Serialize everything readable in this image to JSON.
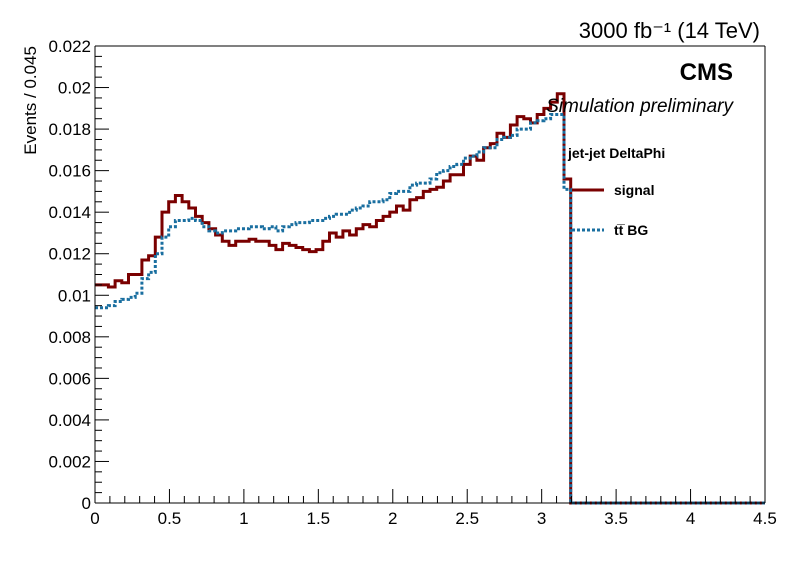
{
  "chart_data": {
    "type": "line",
    "header_text": "3000 fb⁻¹ (14 TeV)",
    "cms_label": "CMS",
    "sim_label": "Simulation preliminary",
    "ylabel": "Events / 0.045",
    "xlabel": "",
    "xlim": [
      0,
      4.5
    ],
    "ylim": [
      0,
      0.022
    ],
    "x_ticks": [
      "0",
      "0.5",
      "1",
      "1.5",
      "2",
      "2.5",
      "3",
      "3.5",
      "4",
      "4.5"
    ],
    "y_ticks": [
      "0",
      "0.002",
      "0.004",
      "0.006",
      "0.008",
      "0.01",
      "0.012",
      "0.014",
      "0.016",
      "0.018",
      "0.02",
      "0.022"
    ],
    "legend": {
      "title": "jet-jet DeltaPhi",
      "placement": "right-middle",
      "entries": [
        {
          "label": "signal",
          "color": "#7a0000",
          "style": "solid"
        },
        {
          "label": "tt̅ BG",
          "color": "#1a6fa0",
          "style": "dotted"
        }
      ]
    },
    "bin_width": 0.045,
    "x_start": 0,
    "series": [
      {
        "name": "signal",
        "color": "#7a0000",
        "values": [
          0.0105,
          0.0105,
          0.0104,
          0.0107,
          0.0106,
          0.011,
          0.011,
          0.0117,
          0.0119,
          0.0128,
          0.014,
          0.0145,
          0.0148,
          0.0145,
          0.0142,
          0.0138,
          0.0135,
          0.0132,
          0.0129,
          0.0126,
          0.0124,
          0.0126,
          0.0126,
          0.0127,
          0.0126,
          0.0126,
          0.0124,
          0.0122,
          0.0125,
          0.0124,
          0.0123,
          0.0122,
          0.0121,
          0.0122,
          0.0126,
          0.013,
          0.0128,
          0.0131,
          0.0129,
          0.0132,
          0.0134,
          0.0133,
          0.0136,
          0.0138,
          0.014,
          0.0143,
          0.0141,
          0.0146,
          0.0147,
          0.015,
          0.0151,
          0.0152,
          0.0155,
          0.0158,
          0.0158,
          0.0163,
          0.0167,
          0.0165,
          0.0171,
          0.0173,
          0.0178,
          0.0176,
          0.0182,
          0.0186,
          0.0185,
          0.0183,
          0.0187,
          0.019,
          0.0193,
          0.0197,
          0.0156,
          0.0,
          0.0,
          0.0,
          0.0,
          0.0,
          0.0,
          0.0,
          0.0,
          0.0,
          0.0,
          0.0,
          0.0,
          0.0,
          0.0,
          0.0,
          0.0,
          0.0,
          0.0,
          0.0,
          0.0,
          0.0,
          0.0,
          0.0,
          0.0,
          0.0,
          0.0,
          0.0,
          0.0,
          0.0
        ]
      },
      {
        "name": "tt̅ BG",
        "color": "#1a6fa0",
        "values": [
          0.0094,
          0.0094,
          0.0095,
          0.0097,
          0.0098,
          0.0099,
          0.0101,
          0.0108,
          0.0111,
          0.012,
          0.0128,
          0.0133,
          0.0136,
          0.0136,
          0.0137,
          0.0136,
          0.0133,
          0.0131,
          0.013,
          0.0131,
          0.0131,
          0.0132,
          0.0132,
          0.0133,
          0.0133,
          0.0132,
          0.0133,
          0.0131,
          0.0133,
          0.0134,
          0.0135,
          0.0135,
          0.0136,
          0.0136,
          0.0137,
          0.0138,
          0.0139,
          0.0139,
          0.0141,
          0.0142,
          0.0143,
          0.0145,
          0.0145,
          0.0146,
          0.0149,
          0.015,
          0.015,
          0.0153,
          0.0154,
          0.0154,
          0.0156,
          0.0159,
          0.016,
          0.0162,
          0.0163,
          0.0166,
          0.0167,
          0.0169,
          0.0171,
          0.0171,
          0.0175,
          0.0176,
          0.0177,
          0.018,
          0.018,
          0.0183,
          0.0184,
          0.0185,
          0.0187,
          0.0187,
          0.0151,
          0.0,
          0.0,
          0.0,
          0.0,
          0.0,
          0.0,
          0.0,
          0.0,
          0.0,
          0.0,
          0.0,
          0.0,
          0.0,
          0.0,
          0.0,
          0.0,
          0.0,
          0.0,
          0.0,
          0.0,
          0.0,
          0.0,
          0.0,
          0.0,
          0.0,
          0.0,
          0.0,
          0.0,
          0.0
        ]
      }
    ],
    "grid": false
  }
}
